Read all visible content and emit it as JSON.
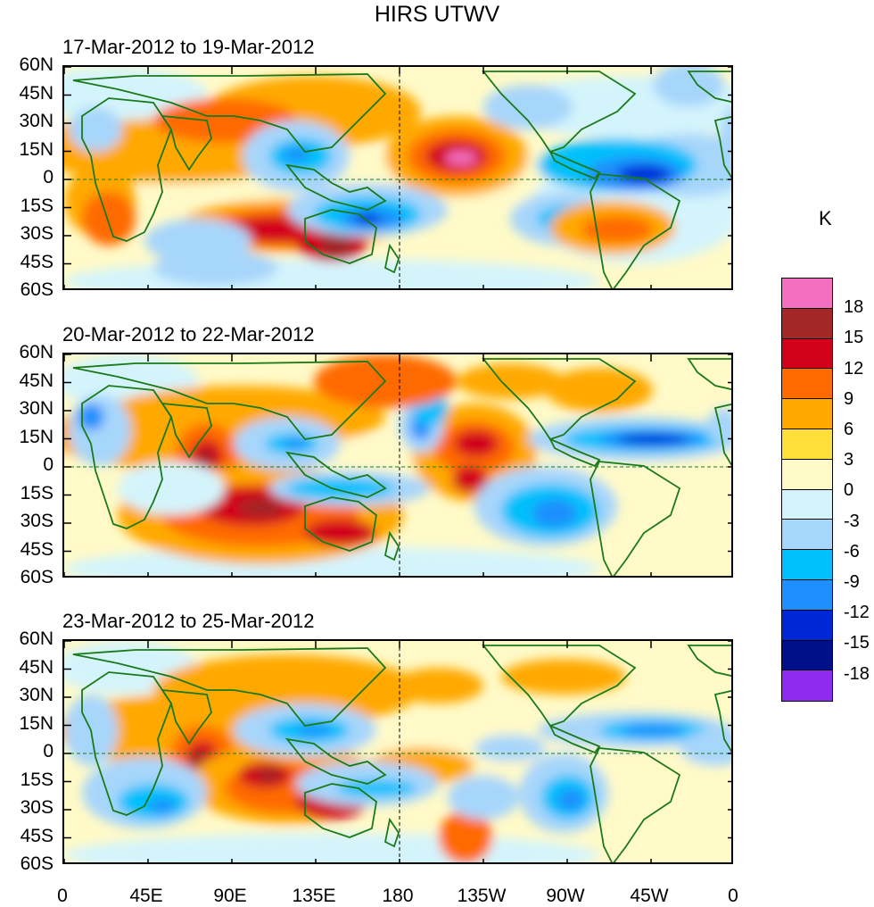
{
  "title": "HIRS UTWV",
  "unit": "K",
  "panels": [
    {
      "date_range": "17-Mar-2012 to 19-Mar-2012"
    },
    {
      "date_range": "20-Mar-2012 to 22-Mar-2012"
    },
    {
      "date_range": "23-Mar-2012 to 25-Mar-2012"
    }
  ],
  "y_ticks": [
    "60N",
    "45N",
    "30N",
    "15N",
    "0",
    "15S",
    "30S",
    "45S",
    "60S"
  ],
  "x_ticks": [
    "0",
    "45E",
    "90E",
    "135E",
    "180",
    "135W",
    "90W",
    "45W",
    "0"
  ],
  "legend_levels": [
    "18",
    "15",
    "12",
    "9",
    "6",
    "3",
    "0",
    "-3",
    "-6",
    "-9",
    "-12",
    "-15",
    "-18"
  ],
  "legend_colors": [
    "#f46fc0",
    "#a12826",
    "#d2001a",
    "#ff6a00",
    "#ffa900",
    "#ffe03a",
    "#fffac8",
    "#d4f4fc",
    "#a7d6fb",
    "#00c0fc",
    "#1e8ffc",
    "#0027d6",
    "#00108a",
    "#8f2bf0"
  ],
  "chart_data": {
    "type": "heatmap",
    "title": "HIRS UTWV",
    "unit": "K",
    "x_range": [
      "0",
      "0"
    ],
    "y_range": [
      "60S",
      "60N"
    ],
    "color_levels": [
      -18,
      -15,
      -12,
      -9,
      -6,
      -3,
      0,
      3,
      6,
      9,
      12,
      15,
      18
    ],
    "panels": [
      "17-Mar-2012 to 19-Mar-2012",
      "20-Mar-2012 to 22-Mar-2012",
      "23-Mar-2012 to 25-Mar-2012"
    ]
  }
}
